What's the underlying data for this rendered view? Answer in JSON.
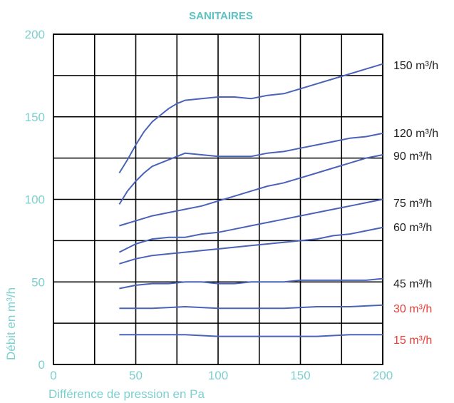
{
  "chart_data": {
    "type": "line",
    "title": "SANITAIRES",
    "xlabel": "Différence de pression en Pa",
    "ylabel": "Débit en m³/h",
    "xlim": [
      0,
      200
    ],
    "ylim": [
      0,
      200
    ],
    "xticks": [
      0,
      50,
      100,
      150,
      200
    ],
    "yticks": [
      0,
      50,
      100,
      150,
      200
    ],
    "grid": true,
    "colors": {
      "axis_text": "#7ecfcf",
      "title": "#5cc3c3",
      "line": "#4a63b8",
      "grid": "#000000",
      "label_default": "#222222",
      "label_highlight": "#e8403a"
    },
    "series": [
      {
        "name": "150 m³/h",
        "label_color": "#222222",
        "x": [
          40,
          45,
          50,
          55,
          60,
          65,
          70,
          75,
          80,
          90,
          100,
          110,
          120,
          125,
          130,
          140,
          150,
          160,
          170,
          180,
          190,
          200
        ],
        "y": [
          116,
          124,
          133,
          141,
          147,
          151,
          155,
          158,
          160,
          161,
          162,
          162,
          161,
          162,
          163,
          164,
          167,
          170,
          173,
          176,
          179,
          182
        ]
      },
      {
        "name": "120 m³/h",
        "label_color": "#222222",
        "x": [
          40,
          45,
          50,
          55,
          60,
          65,
          70,
          75,
          80,
          90,
          100,
          110,
          120,
          130,
          140,
          150,
          160,
          170,
          180,
          190,
          200
        ],
        "y": [
          97,
          105,
          111,
          116,
          120,
          122,
          124,
          126,
          128,
          127,
          126,
          126,
          126,
          128,
          129,
          131,
          133,
          135,
          137,
          138,
          140
        ]
      },
      {
        "name": "90 m³/h",
        "label_color": "#222222",
        "x": [
          40,
          50,
          60,
          70,
          80,
          90,
          100,
          110,
          120,
          130,
          140,
          150,
          160,
          170,
          180,
          190,
          200
        ],
        "y": [
          84,
          87,
          90,
          92,
          94,
          96,
          99,
          102,
          105,
          108,
          110,
          113,
          116,
          119,
          122,
          125,
          127
        ]
      },
      {
        "name": "75 m³/h",
        "label_color": "#222222",
        "x": [
          40,
          50,
          60,
          70,
          80,
          90,
          100,
          110,
          120,
          130,
          140,
          150,
          160,
          170,
          180,
          190,
          200
        ],
        "y": [
          68,
          73,
          76,
          77,
          77,
          79,
          80,
          82,
          84,
          86,
          88,
          90,
          92,
          94,
          96,
          98,
          100
        ]
      },
      {
        "name": "60 m³/h",
        "label_color": "#222222",
        "x": [
          40,
          50,
          60,
          70,
          80,
          90,
          100,
          110,
          120,
          130,
          140,
          150,
          160,
          170,
          180,
          190,
          200
        ],
        "y": [
          61,
          64,
          66,
          67,
          68,
          69,
          70,
          71,
          72,
          73,
          74,
          75,
          76,
          78,
          79,
          81,
          83
        ]
      },
      {
        "name": "45 m³/h",
        "label_color": "#222222",
        "x": [
          40,
          50,
          60,
          70,
          80,
          90,
          100,
          110,
          120,
          130,
          140,
          150,
          160,
          170,
          180,
          190,
          200
        ],
        "y": [
          46,
          48,
          49,
          49,
          50,
          50,
          49,
          49,
          50,
          50,
          50,
          51,
          51,
          51,
          51,
          51,
          52
        ]
      },
      {
        "name": "30 m³/h",
        "label_color": "#e8403a",
        "x": [
          40,
          60,
          80,
          100,
          120,
          140,
          160,
          180,
          200
        ],
        "y": [
          34,
          34,
          35,
          34,
          34,
          34,
          35,
          35,
          36
        ]
      },
      {
        "name": "15 m³/h",
        "label_color": "#e8403a",
        "x": [
          40,
          60,
          80,
          100,
          120,
          140,
          160,
          180,
          200
        ],
        "y": [
          18,
          18,
          18,
          17,
          17,
          17,
          17,
          18,
          18
        ]
      }
    ]
  }
}
